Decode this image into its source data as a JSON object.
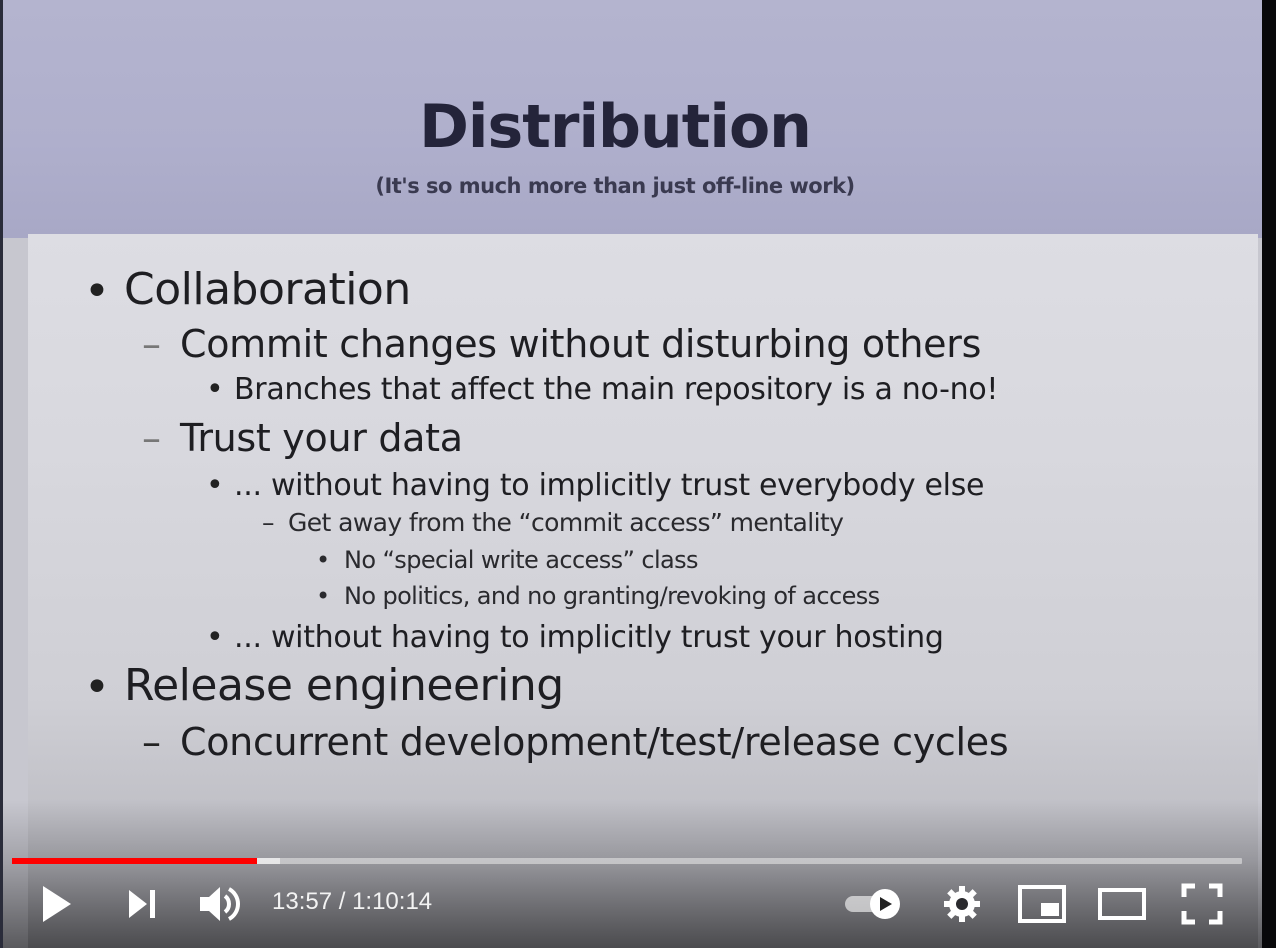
{
  "slide": {
    "title": "Distribution",
    "subtitle": "(It's so much more than just off-line work)",
    "items": [
      {
        "bullet": "•",
        "text": "Collaboration"
      },
      {
        "bullet": "–",
        "text": "Commit changes without disturbing others"
      },
      {
        "bullet": "•",
        "text": "Branches that affect the main repository is a no-no!"
      },
      {
        "bullet": "–",
        "text": "Trust your data"
      },
      {
        "bullet": "•",
        "text": "... without having to implicitly trust everybody else"
      },
      {
        "bullet": "–",
        "text": "Get away from the “commit access” mentality"
      },
      {
        "bullet": "•",
        "text": "No “special write access” class"
      },
      {
        "bullet": "•",
        "text": "No politics, and no granting/revoking of access"
      },
      {
        "bullet": "•",
        "text": "... without having to implicitly trust your hosting"
      },
      {
        "bullet": "•",
        "text": "Release engineering"
      },
      {
        "bullet": "–",
        "text": "Concurrent development/test/release cycles"
      }
    ]
  },
  "player": {
    "current_time": "13:57",
    "separator": " / ",
    "duration": "1:10:14",
    "time_display": "13:57 / 1:10:14",
    "progress_fraction": 0.199,
    "buffered_fraction": 0.218,
    "autoplay_on": true,
    "icons": {
      "play": "play-icon",
      "next": "next-icon",
      "volume": "volume-icon",
      "autoplay": "autoplay-toggle-icon",
      "settings": "gear-icon",
      "miniplayer": "miniplayer-icon",
      "theater": "theater-mode-icon",
      "fullscreen": "fullscreen-icon"
    },
    "colors": {
      "played": "#ff0000",
      "controls": "#ffffff"
    }
  }
}
